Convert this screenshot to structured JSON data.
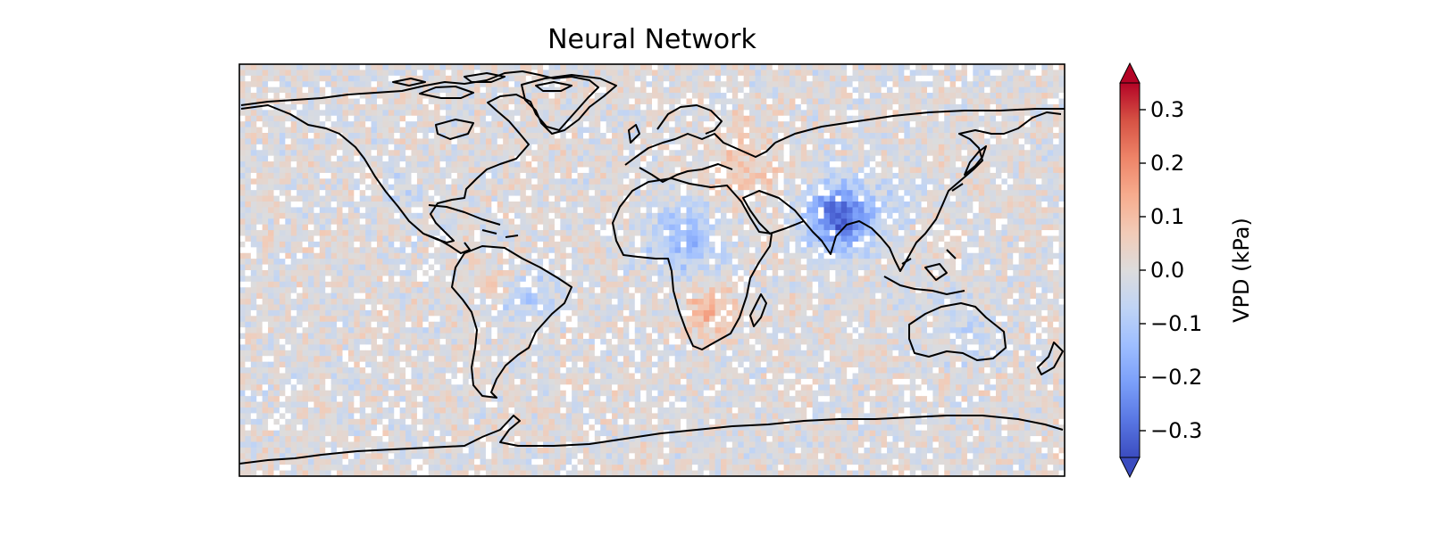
{
  "chart_data": {
    "type": "heatmap",
    "title": "Neural Network",
    "projection": "plate-carree global map",
    "grid": false,
    "colormap": "coolwarm",
    "colorbar": {
      "label": "VPD (kPa)",
      "vmin": -0.35,
      "vmax": 0.35,
      "extend": "both",
      "ticks": [
        0.3,
        0.2,
        0.1,
        0.0,
        -0.1,
        -0.2,
        -0.3
      ],
      "tick_labels": [
        "0.3",
        "0.2",
        "0.1",
        "0.0",
        "−0.1",
        "−0.2",
        "−0.3"
      ],
      "placement": "right"
    },
    "colors": {
      "cmap_low": "#3b4cc0",
      "cmap_mid": "#dddddd",
      "cmap_high": "#b40426",
      "coastline": "#000000",
      "missing": "#ffffff"
    },
    "notable_anomalies": [
      {
        "region": "India / Ganges plain",
        "value": -0.3
      },
      {
        "region": "Sahel",
        "value": -0.15
      },
      {
        "region": "Southern Africa",
        "value": 0.12
      },
      {
        "region": "Eastern Europe / Middle East",
        "value": 0.08
      },
      {
        "region": "Central South America",
        "value": -0.1
      },
      {
        "region": "Australia",
        "value": -0.05
      }
    ]
  }
}
